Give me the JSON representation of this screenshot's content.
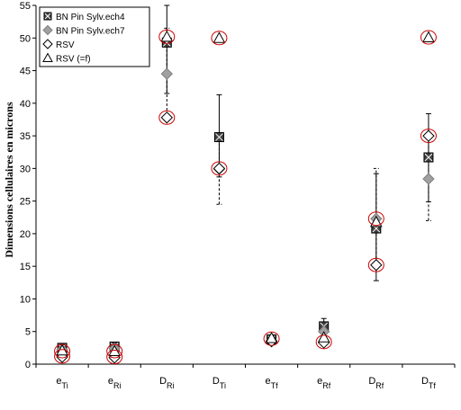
{
  "chart_data": {
    "type": "scatter",
    "ylabel": "Dimensions cellulaires en microns",
    "xlabel": "",
    "ylim": [
      0,
      55
    ],
    "yticks": [
      0,
      5,
      10,
      15,
      20,
      25,
      30,
      35,
      40,
      45,
      50,
      55
    ],
    "grid": false,
    "legend_position": "top-left",
    "categories": [
      {
        "main": "e",
        "sub": "Ti"
      },
      {
        "main": "e",
        "sub": "Ri"
      },
      {
        "main": "D",
        "sub": "Ri"
      },
      {
        "main": "D",
        "sub": "Ti"
      },
      {
        "main": "e",
        "sub": "Tf"
      },
      {
        "main": "e",
        "sub": "Rf"
      },
      {
        "main": "D",
        "sub": "Rf"
      },
      {
        "main": "D",
        "sub": "Tf"
      }
    ],
    "series": [
      {
        "name": "BN Pin Sylv.ech4",
        "marker": "square-x",
        "color": "#404040",
        "values": [
          2.5,
          2.7,
          49.3,
          34.8,
          3.8,
          5.8,
          20.8,
          31.7
        ],
        "error_low": [
          2.0,
          2.3,
          41.5,
          28.7,
          3.3,
          5.1,
          12.8,
          24.9
        ],
        "error_high": [
          3.0,
          3.1,
          56.0,
          41.3,
          4.4,
          7.0,
          29.2,
          38.4
        ],
        "error_style": "solid"
      },
      {
        "name": "BN Pin Sylv.ech7",
        "marker": "diamond-filled",
        "color": "#a0a0a0",
        "values": [
          2.2,
          2.4,
          44.5,
          29.9,
          3.6,
          5.0,
          22.3,
          28.4
        ],
        "error_low": [
          1.8,
          2.0,
          37.5,
          24.5,
          3.1,
          4.4,
          15.5,
          22.0
        ],
        "error_high": [
          2.6,
          2.8,
          51.5,
          35.5,
          4.1,
          5.6,
          30.0,
          35.0
        ],
        "error_style": "dashed"
      },
      {
        "name": "RSV",
        "marker": "diamond-open",
        "color": "#000000",
        "values": [
          1.1,
          1.0,
          37.8,
          30.0,
          3.5,
          3.3,
          15.2,
          35.0
        ]
      },
      {
        "name": "RSV (=f)",
        "marker": "triangle-open",
        "color": "#000000",
        "values": [
          2.1,
          2.0,
          50.2,
          50.0,
          4.0,
          4.1,
          21.8,
          50.1
        ]
      }
    ],
    "highlight_circles": {
      "color": "#cc0000",
      "points": [
        {
          "category": 0,
          "y": 2.0
        },
        {
          "category": 0,
          "y": 1.2
        },
        {
          "category": 1,
          "y": 2.0
        },
        {
          "category": 1,
          "y": 1.1
        },
        {
          "category": 2,
          "y": 50.2
        },
        {
          "category": 2,
          "y": 37.8
        },
        {
          "category": 3,
          "y": 50.0
        },
        {
          "category": 3,
          "y": 30.0
        },
        {
          "category": 4,
          "y": 3.9
        },
        {
          "category": 5,
          "y": 3.4
        },
        {
          "category": 6,
          "y": 22.3
        },
        {
          "category": 6,
          "y": 15.2
        },
        {
          "category": 7,
          "y": 50.1
        },
        {
          "category": 7,
          "y": 35.0
        }
      ]
    }
  }
}
